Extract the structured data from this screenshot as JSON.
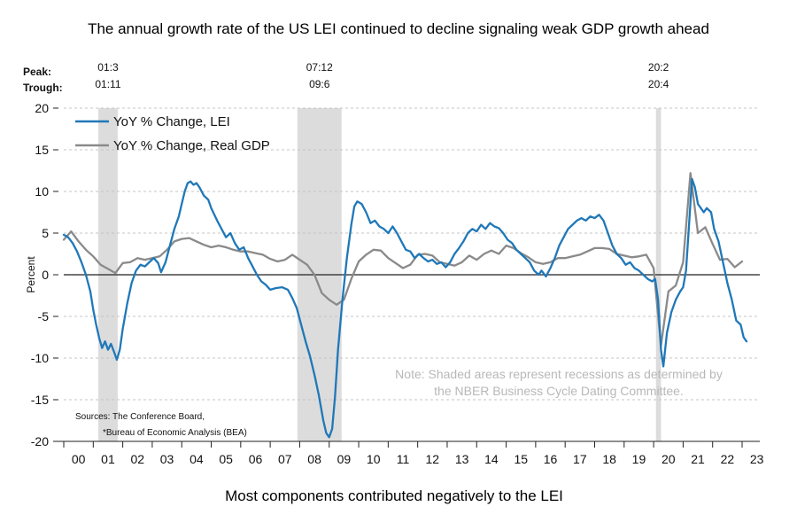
{
  "page": {
    "title": "The annual growth rate of the US LEI continued to decline signaling weak GDP growth ahead",
    "subtitle": "Most components contributed negatively to the LEI"
  },
  "chart_data": {
    "type": "line",
    "ylabel": "Percent",
    "ylim": [
      -20,
      20
    ],
    "yticks": [
      -20,
      -15,
      -10,
      -5,
      0,
      5,
      10,
      15,
      20
    ],
    "xlim": [
      2000,
      2023.6
    ],
    "xtick_labels": [
      "00",
      "01",
      "02",
      "03",
      "04",
      "05",
      "06",
      "07",
      "08",
      "09",
      "10",
      "11",
      "12",
      "13",
      "14",
      "15",
      "16",
      "17",
      "18",
      "19",
      "20",
      "21",
      "22",
      "23"
    ],
    "grid": "horizontal dashed",
    "legend_position": "top-left",
    "recession_header": {
      "peak_label": "Peak:",
      "trough_label": "Trough:"
    },
    "recessions": [
      {
        "start": 2001.17,
        "end": 2001.83,
        "peak": "01:3",
        "trough": "01:11"
      },
      {
        "start": 2007.92,
        "end": 2009.42,
        "peak": "07:12",
        "trough": "09:6"
      },
      {
        "start": 2020.08,
        "end": 2020.25,
        "peak": "20:2",
        "trough": "20:4"
      }
    ],
    "note": [
      "Note: Shaded areas represent recessions as determined by",
      "the NBER Business Cycle Dating Committee."
    ],
    "sources": [
      "Sources: The Conference Board,",
      "*Bureau of Economic Analysis (BEA)"
    ],
    "series": [
      {
        "name": "YoY % Change, LEI",
        "color": "#1f78b8",
        "points": [
          [
            2000.0,
            4.8
          ],
          [
            2000.15,
            4.5
          ],
          [
            2000.3,
            3.8
          ],
          [
            2000.45,
            2.8
          ],
          [
            2000.6,
            1.5
          ],
          [
            2000.75,
            0.0
          ],
          [
            2000.9,
            -2.0
          ],
          [
            2001.0,
            -4.2
          ],
          [
            2001.1,
            -6.0
          ],
          [
            2001.2,
            -7.6
          ],
          [
            2001.3,
            -8.8
          ],
          [
            2001.4,
            -8.0
          ],
          [
            2001.5,
            -9.0
          ],
          [
            2001.6,
            -8.3
          ],
          [
            2001.7,
            -9.2
          ],
          [
            2001.8,
            -10.2
          ],
          [
            2001.9,
            -9.0
          ],
          [
            2002.0,
            -6.5
          ],
          [
            2002.15,
            -3.5
          ],
          [
            2002.3,
            -1.0
          ],
          [
            2002.45,
            0.5
          ],
          [
            2002.6,
            1.2
          ],
          [
            2002.75,
            1.0
          ],
          [
            2002.9,
            1.5
          ],
          [
            2003.05,
            2.0
          ],
          [
            2003.2,
            1.4
          ],
          [
            2003.3,
            0.3
          ],
          [
            2003.45,
            1.5
          ],
          [
            2003.6,
            3.5
          ],
          [
            2003.75,
            5.5
          ],
          [
            2003.9,
            7.0
          ],
          [
            2004.0,
            8.5
          ],
          [
            2004.1,
            10.0
          ],
          [
            2004.2,
            11.0
          ],
          [
            2004.3,
            11.2
          ],
          [
            2004.4,
            10.8
          ],
          [
            2004.5,
            11.0
          ],
          [
            2004.6,
            10.5
          ],
          [
            2004.75,
            9.5
          ],
          [
            2004.9,
            9.0
          ],
          [
            2005.0,
            8.0
          ],
          [
            2005.2,
            6.5
          ],
          [
            2005.35,
            5.5
          ],
          [
            2005.5,
            4.5
          ],
          [
            2005.65,
            5.0
          ],
          [
            2005.8,
            3.8
          ],
          [
            2005.95,
            3.0
          ],
          [
            2006.1,
            3.3
          ],
          [
            2006.25,
            2.0
          ],
          [
            2006.4,
            1.0
          ],
          [
            2006.55,
            0.0
          ],
          [
            2006.7,
            -0.8
          ],
          [
            2006.85,
            -1.2
          ],
          [
            2007.0,
            -1.8
          ],
          [
            2007.2,
            -1.6
          ],
          [
            2007.4,
            -1.5
          ],
          [
            2007.6,
            -1.8
          ],
          [
            2007.75,
            -2.8
          ],
          [
            2007.9,
            -4.0
          ],
          [
            2008.05,
            -6.0
          ],
          [
            2008.2,
            -8.0
          ],
          [
            2008.35,
            -9.8
          ],
          [
            2008.5,
            -12.0
          ],
          [
            2008.65,
            -14.5
          ],
          [
            2008.8,
            -17.5
          ],
          [
            2008.9,
            -19.0
          ],
          [
            2009.0,
            -19.5
          ],
          [
            2009.1,
            -18.5
          ],
          [
            2009.2,
            -14.5
          ],
          [
            2009.3,
            -9.0
          ],
          [
            2009.45,
            -3.0
          ],
          [
            2009.6,
            2.0
          ],
          [
            2009.75,
            6.0
          ],
          [
            2009.85,
            8.2
          ],
          [
            2009.95,
            8.8
          ],
          [
            2010.1,
            8.5
          ],
          [
            2010.25,
            7.5
          ],
          [
            2010.4,
            6.2
          ],
          [
            2010.55,
            6.5
          ],
          [
            2010.7,
            5.8
          ],
          [
            2010.85,
            5.5
          ],
          [
            2011.0,
            5.0
          ],
          [
            2011.15,
            5.8
          ],
          [
            2011.3,
            5.0
          ],
          [
            2011.45,
            4.0
          ],
          [
            2011.6,
            3.0
          ],
          [
            2011.75,
            2.8
          ],
          [
            2011.9,
            2.0
          ],
          [
            2012.05,
            2.5
          ],
          [
            2012.2,
            2.0
          ],
          [
            2012.35,
            1.6
          ],
          [
            2012.5,
            1.8
          ],
          [
            2012.65,
            1.3
          ],
          [
            2012.8,
            1.5
          ],
          [
            2012.95,
            0.9
          ],
          [
            2013.1,
            1.5
          ],
          [
            2013.25,
            2.5
          ],
          [
            2013.4,
            3.2
          ],
          [
            2013.55,
            4.0
          ],
          [
            2013.7,
            5.0
          ],
          [
            2013.85,
            5.5
          ],
          [
            2014.0,
            5.2
          ],
          [
            2014.15,
            6.0
          ],
          [
            2014.3,
            5.5
          ],
          [
            2014.45,
            6.2
          ],
          [
            2014.6,
            5.8
          ],
          [
            2014.75,
            5.6
          ],
          [
            2014.9,
            5.0
          ],
          [
            2015.05,
            4.2
          ],
          [
            2015.2,
            3.8
          ],
          [
            2015.35,
            3.0
          ],
          [
            2015.5,
            2.5
          ],
          [
            2015.65,
            2.0
          ],
          [
            2015.8,
            1.5
          ],
          [
            2015.95,
            0.5
          ],
          [
            2016.1,
            0.0
          ],
          [
            2016.2,
            0.5
          ],
          [
            2016.35,
            -0.2
          ],
          [
            2016.5,
            0.8
          ],
          [
            2016.65,
            2.0
          ],
          [
            2016.8,
            3.5
          ],
          [
            2016.95,
            4.5
          ],
          [
            2017.1,
            5.5
          ],
          [
            2017.25,
            6.0
          ],
          [
            2017.4,
            6.5
          ],
          [
            2017.55,
            6.8
          ],
          [
            2017.7,
            6.5
          ],
          [
            2017.85,
            7.0
          ],
          [
            2018.0,
            6.8
          ],
          [
            2018.15,
            7.2
          ],
          [
            2018.3,
            6.5
          ],
          [
            2018.45,
            5.0
          ],
          [
            2018.6,
            3.5
          ],
          [
            2018.75,
            2.5
          ],
          [
            2018.9,
            2.0
          ],
          [
            2019.05,
            1.2
          ],
          [
            2019.2,
            1.5
          ],
          [
            2019.35,
            0.8
          ],
          [
            2019.5,
            0.5
          ],
          [
            2019.65,
            0.0
          ],
          [
            2019.8,
            -0.5
          ],
          [
            2019.95,
            -0.8
          ],
          [
            2020.05,
            -0.5
          ],
          [
            2020.15,
            -3.0
          ],
          [
            2020.25,
            -9.0
          ],
          [
            2020.33,
            -11.0
          ],
          [
            2020.45,
            -7.0
          ],
          [
            2020.6,
            -4.5
          ],
          [
            2020.75,
            -3.0
          ],
          [
            2020.9,
            -2.0
          ],
          [
            2021.0,
            -1.5
          ],
          [
            2021.1,
            0.5
          ],
          [
            2021.2,
            6.0
          ],
          [
            2021.3,
            11.5
          ],
          [
            2021.4,
            10.5
          ],
          [
            2021.5,
            8.5
          ],
          [
            2021.6,
            8.0
          ],
          [
            2021.7,
            7.5
          ],
          [
            2021.8,
            8.0
          ],
          [
            2021.95,
            7.5
          ],
          [
            2022.05,
            5.5
          ],
          [
            2022.2,
            4.0
          ],
          [
            2022.35,
            1.5
          ],
          [
            2022.5,
            -1.0
          ],
          [
            2022.65,
            -3.0
          ],
          [
            2022.8,
            -5.5
          ],
          [
            2022.95,
            -6.0
          ],
          [
            2023.05,
            -7.5
          ],
          [
            2023.15,
            -8.0
          ]
        ]
      },
      {
        "name": "YoY % Change, Real GDP",
        "color": "#8a8a8a",
        "points": [
          [
            2000.0,
            4.2
          ],
          [
            2000.25,
            5.2
          ],
          [
            2000.5,
            4.0
          ],
          [
            2000.75,
            3.0
          ],
          [
            2001.0,
            2.2
          ],
          [
            2001.25,
            1.2
          ],
          [
            2001.5,
            0.7
          ],
          [
            2001.75,
            0.2
          ],
          [
            2002.0,
            1.4
          ],
          [
            2002.25,
            1.5
          ],
          [
            2002.5,
            2.0
          ],
          [
            2002.75,
            1.8
          ],
          [
            2003.0,
            2.0
          ],
          [
            2003.25,
            2.2
          ],
          [
            2003.5,
            3.0
          ],
          [
            2003.75,
            4.0
          ],
          [
            2004.0,
            4.3
          ],
          [
            2004.25,
            4.4
          ],
          [
            2004.5,
            4.0
          ],
          [
            2004.75,
            3.6
          ],
          [
            2005.0,
            3.3
          ],
          [
            2005.25,
            3.5
          ],
          [
            2005.5,
            3.3
          ],
          [
            2005.75,
            3.0
          ],
          [
            2006.0,
            2.8
          ],
          [
            2006.25,
            2.8
          ],
          [
            2006.5,
            2.6
          ],
          [
            2006.75,
            2.4
          ],
          [
            2007.0,
            1.9
          ],
          [
            2007.25,
            1.6
          ],
          [
            2007.5,
            1.8
          ],
          [
            2007.75,
            2.4
          ],
          [
            2008.0,
            1.8
          ],
          [
            2008.25,
            1.2
          ],
          [
            2008.5,
            0.0
          ],
          [
            2008.75,
            -2.2
          ],
          [
            2009.0,
            -3.0
          ],
          [
            2009.25,
            -3.6
          ],
          [
            2009.5,
            -3.0
          ],
          [
            2009.75,
            -0.5
          ],
          [
            2010.0,
            1.6
          ],
          [
            2010.25,
            2.4
          ],
          [
            2010.5,
            3.0
          ],
          [
            2010.75,
            2.9
          ],
          [
            2011.0,
            2.0
          ],
          [
            2011.25,
            1.4
          ],
          [
            2011.5,
            0.8
          ],
          [
            2011.75,
            1.2
          ],
          [
            2012.0,
            2.4
          ],
          [
            2012.25,
            2.5
          ],
          [
            2012.5,
            2.3
          ],
          [
            2012.75,
            1.5
          ],
          [
            2013.0,
            1.3
          ],
          [
            2013.25,
            1.1
          ],
          [
            2013.5,
            1.5
          ],
          [
            2013.75,
            2.3
          ],
          [
            2014.0,
            1.8
          ],
          [
            2014.25,
            2.5
          ],
          [
            2014.5,
            2.9
          ],
          [
            2014.75,
            2.5
          ],
          [
            2015.0,
            3.5
          ],
          [
            2015.25,
            3.2
          ],
          [
            2015.5,
            2.6
          ],
          [
            2015.75,
            2.1
          ],
          [
            2016.0,
            1.5
          ],
          [
            2016.25,
            1.3
          ],
          [
            2016.5,
            1.5
          ],
          [
            2016.75,
            2.0
          ],
          [
            2017.0,
            2.0
          ],
          [
            2017.25,
            2.2
          ],
          [
            2017.5,
            2.4
          ],
          [
            2017.75,
            2.8
          ],
          [
            2018.0,
            3.2
          ],
          [
            2018.25,
            3.2
          ],
          [
            2018.5,
            3.1
          ],
          [
            2018.75,
            2.5
          ],
          [
            2019.0,
            2.3
          ],
          [
            2019.25,
            2.1
          ],
          [
            2019.5,
            2.2
          ],
          [
            2019.75,
            2.4
          ],
          [
            2020.0,
            0.8
          ],
          [
            2020.25,
            -8.5
          ],
          [
            2020.5,
            -2.0
          ],
          [
            2020.75,
            -1.3
          ],
          [
            2021.0,
            1.5
          ],
          [
            2021.25,
            12.2
          ],
          [
            2021.5,
            5.0
          ],
          [
            2021.75,
            5.7
          ],
          [
            2022.0,
            3.7
          ],
          [
            2022.25,
            1.8
          ],
          [
            2022.5,
            1.9
          ],
          [
            2022.75,
            0.9
          ],
          [
            2023.0,
            1.6
          ]
        ]
      }
    ]
  }
}
